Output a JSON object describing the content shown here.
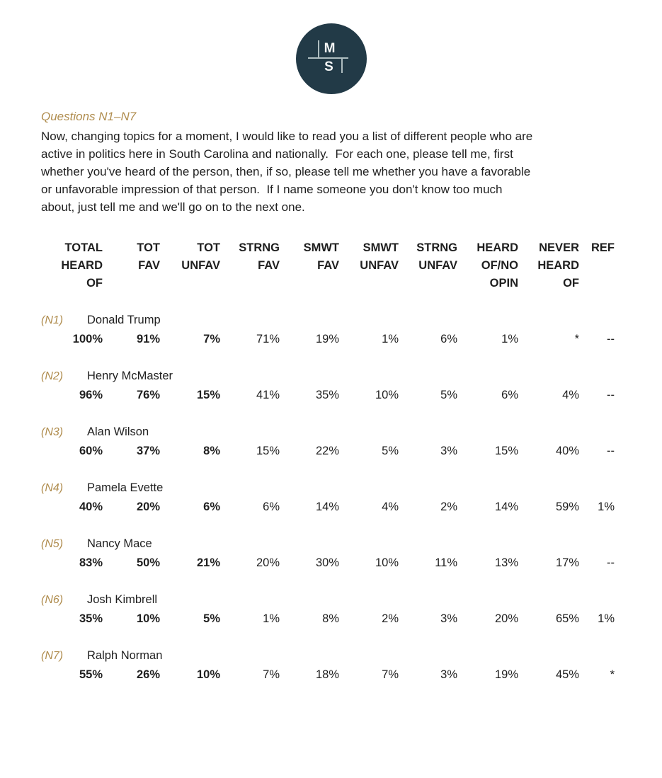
{
  "logo": {
    "letter_m": "M",
    "letter_s": "S",
    "bg_color": "#223A47",
    "line_color": "#AEBDC0"
  },
  "section": {
    "heading": "Questions N1–N7"
  },
  "intro": {
    "text": "Now, changing topics for a moment, I would like to read you a list of different people who are\nactive in politics here in South Carolina and nationally.  For each one, please tell me, first\nwhether you've heard of the person, then, if so, please tell me whether you have a favorable\nor unfavorable impression of that person.  If I name someone you don't know too much\nabout, just tell me and we'll go on to the next one."
  },
  "colors": {
    "accent_tan": "#B08D4F",
    "text": "#1F1F1F",
    "background": "#FFFFFF"
  },
  "table": {
    "headers": [
      "TOTAL\nHEARD\nOF",
      "TOT\nFAV",
      "TOT\nUNFAV",
      "STRNG\nFAV",
      "SMWT\nFAV",
      "SMWT\nUNFAV",
      "STRNG\nUNFAV",
      "HEARD\nOF/NO\nOPIN",
      "NEVER\nHEARD\nOF",
      "REF"
    ],
    "rows": [
      {
        "qnum": "(N1)",
        "name": "Donald Trump",
        "values": [
          "100%",
          "91%",
          "7%",
          "71%",
          "19%",
          "1%",
          "6%",
          "1%",
          "*",
          "--"
        ]
      },
      {
        "qnum": "(N2)",
        "name": "Henry McMaster",
        "values": [
          "96%",
          "76%",
          "15%",
          "41%",
          "35%",
          "10%",
          "5%",
          "6%",
          "4%",
          "--"
        ]
      },
      {
        "qnum": "(N3)",
        "name": "Alan Wilson",
        "values": [
          "60%",
          "37%",
          "8%",
          "15%",
          "22%",
          "5%",
          "3%",
          "15%",
          "40%",
          "--"
        ]
      },
      {
        "qnum": "(N4)",
        "name": "Pamela Evette",
        "values": [
          "40%",
          "20%",
          "6%",
          "6%",
          "14%",
          "4%",
          "2%",
          "14%",
          "59%",
          "1%"
        ]
      },
      {
        "qnum": "(N5)",
        "name": "Nancy Mace",
        "values": [
          "83%",
          "50%",
          "21%",
          "20%",
          "30%",
          "10%",
          "11%",
          "13%",
          "17%",
          "--"
        ]
      },
      {
        "qnum": "(N6)",
        "name": "Josh Kimbrell",
        "values": [
          "35%",
          "10%",
          "5%",
          "1%",
          "8%",
          "2%",
          "3%",
          "20%",
          "65%",
          "1%"
        ]
      },
      {
        "qnum": "(N7)",
        "name": "Ralph Norman",
        "values": [
          "55%",
          "26%",
          "10%",
          "7%",
          "18%",
          "7%",
          "3%",
          "19%",
          "45%",
          "*"
        ]
      }
    ]
  }
}
